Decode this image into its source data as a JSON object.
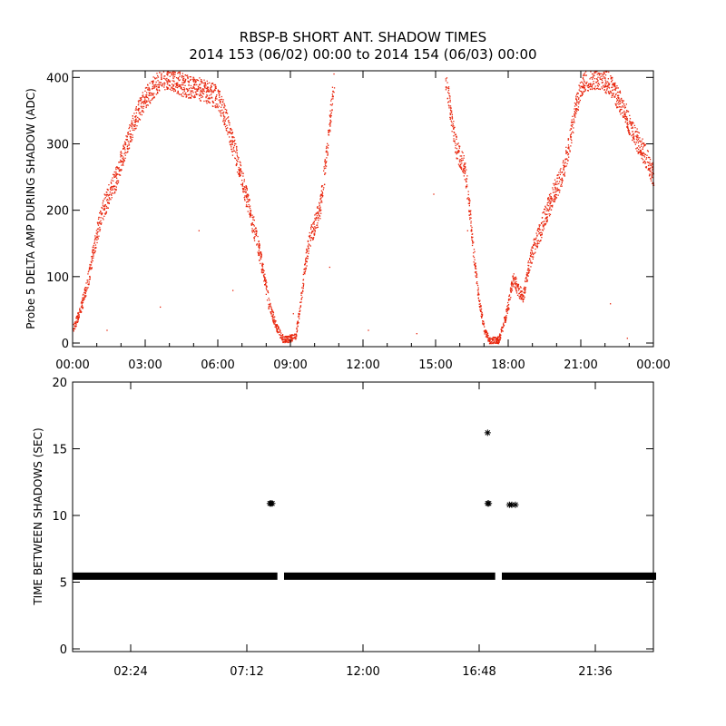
{
  "title": "RBSP-B SHORT ANT. SHADOW TIMES",
  "subtitle": "2014 153 (06/02) 00:00 to 2014 154 (06/03) 00:00",
  "colors": {
    "points_top": "#e8250c",
    "points_bottom": "#000000",
    "axes": "#000000"
  },
  "chart_data": [
    {
      "type": "scatter",
      "ylabel": "Probe 5 DELTA AMP DURING SHADOW (ADC)",
      "xlabel": "",
      "xlim": [
        0,
        24
      ],
      "ylim": [
        0,
        410
      ],
      "x_ticks": [
        "00:00",
        "03:00",
        "06:00",
        "09:00",
        "12:00",
        "15:00",
        "18:00",
        "21:00",
        "00:00"
      ],
      "y_ticks": [
        "0",
        "100",
        "200",
        "300",
        "400"
      ],
      "y_tick_values": [
        0,
        100,
        200,
        300,
        400
      ],
      "marker": "dot",
      "color": "#e8250c",
      "trend": [
        [
          0.0,
          20
        ],
        [
          0.3,
          50
        ],
        [
          0.6,
          90
        ],
        [
          0.9,
          150
        ],
        [
          1.2,
          200
        ],
        [
          1.5,
          225
        ],
        [
          1.8,
          250
        ],
        [
          2.1,
          290
        ],
        [
          2.4,
          320
        ],
        [
          2.7,
          350
        ],
        [
          3.0,
          370
        ],
        [
          3.3,
          385
        ],
        [
          3.6,
          400
        ],
        [
          4.0,
          400
        ],
        [
          4.5,
          390
        ],
        [
          5.0,
          385
        ],
        [
          5.5,
          380
        ],
        [
          6.0,
          370
        ],
        [
          6.3,
          340
        ],
        [
          6.6,
          300
        ],
        [
          6.9,
          260
        ],
        [
          7.2,
          215
        ],
        [
          7.5,
          170
        ],
        [
          7.8,
          120
        ],
        [
          8.1,
          60
        ],
        [
          8.4,
          25
        ],
        [
          8.7,
          5
        ],
        [
          9.2,
          10
        ],
        [
          9.4,
          60
        ],
        [
          9.6,
          120
        ],
        [
          9.8,
          160
        ],
        [
          10.0,
          180
        ],
        [
          10.2,
          200
        ],
        [
          10.4,
          260
        ],
        [
          10.6,
          330
        ],
        [
          10.8,
          400
        ],
        [
          15.4,
          400
        ],
        [
          15.6,
          350
        ],
        [
          15.8,
          300
        ],
        [
          16.0,
          280
        ],
        [
          16.2,
          260
        ],
        [
          16.4,
          200
        ],
        [
          16.6,
          120
        ],
        [
          16.8,
          60
        ],
        [
          17.0,
          20
        ],
        [
          17.2,
          5
        ],
        [
          17.6,
          5
        ],
        [
          17.8,
          30
        ],
        [
          18.0,
          60
        ],
        [
          18.2,
          100
        ],
        [
          18.4,
          80
        ],
        [
          18.6,
          70
        ],
        [
          18.8,
          110
        ],
        [
          19.0,
          140
        ],
        [
          19.3,
          170
        ],
        [
          19.6,
          200
        ],
        [
          19.9,
          230
        ],
        [
          20.2,
          250
        ],
        [
          20.5,
          300
        ],
        [
          20.8,
          360
        ],
        [
          21.1,
          395
        ],
        [
          21.4,
          400
        ],
        [
          21.8,
          400
        ],
        [
          22.2,
          390
        ],
        [
          22.5,
          370
        ],
        [
          22.8,
          350
        ],
        [
          23.1,
          320
        ],
        [
          23.4,
          300
        ],
        [
          23.7,
          280
        ],
        [
          24.0,
          250
        ]
      ],
      "spread": 25,
      "outliers": [
        [
          1.4,
          20
        ],
        [
          3.6,
          55
        ],
        [
          5.2,
          170
        ],
        [
          6.6,
          80
        ],
        [
          9.1,
          45
        ],
        [
          10.6,
          115
        ],
        [
          12.2,
          20
        ],
        [
          14.2,
          15
        ],
        [
          14.9,
          225
        ],
        [
          16.3,
          170
        ],
        [
          22.2,
          60
        ],
        [
          22.9,
          8
        ]
      ]
    },
    {
      "type": "scatter",
      "ylabel": "TIME BETWEEN SHADOWS (SEC)",
      "xlabel": "",
      "xlim": [
        0,
        24
      ],
      "ylim": [
        0,
        20
      ],
      "x_ticks": [
        "02:24",
        "07:12",
        "12:00",
        "16:48",
        "21:36"
      ],
      "x_tick_values": [
        2.4,
        7.2,
        12.0,
        16.8,
        21.6
      ],
      "y_ticks": [
        "0",
        "5",
        "10",
        "15",
        "20"
      ],
      "y_tick_values": [
        0,
        5,
        10,
        15,
        20
      ],
      "marker": "asterisk",
      "color": "#000000",
      "baseline": {
        "y": 5.45,
        "segments": [
          [
            0.1,
            8.35
          ],
          [
            8.85,
            17.35
          ],
          [
            17.85,
            24.0
          ]
        ]
      },
      "points": [
        [
          8.15,
          10.9
        ],
        [
          8.2,
          10.9
        ],
        [
          8.25,
          10.9
        ],
        [
          17.15,
          16.2
        ],
        [
          17.15,
          10.9
        ],
        [
          17.2,
          10.9
        ],
        [
          18.05,
          10.8
        ],
        [
          18.15,
          10.8
        ],
        [
          18.3,
          10.8
        ]
      ]
    }
  ]
}
